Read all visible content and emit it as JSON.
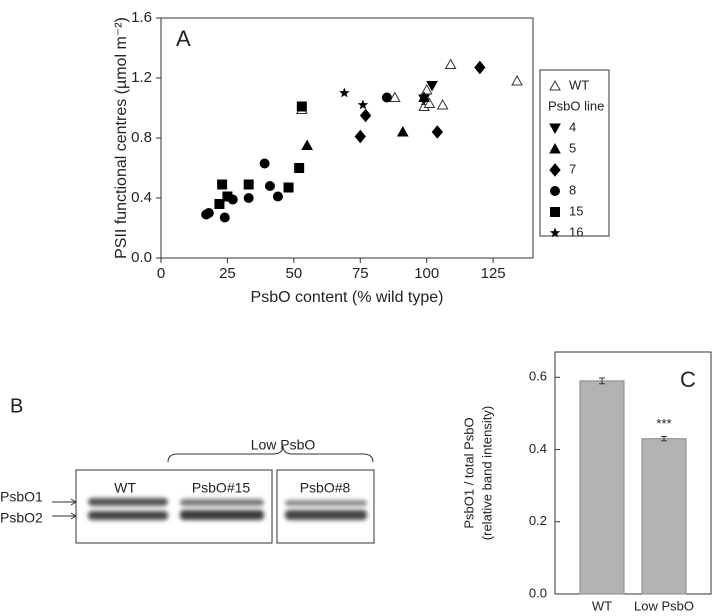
{
  "chart_data": [
    {
      "type": "scatter",
      "panel_label": "A",
      "x_label": "PsbO content (% wild type)",
      "y_label": "PSII functional centres (µmol m⁻²)",
      "xlim": [
        0,
        140
      ],
      "xticks": [
        0,
        25,
        50,
        75,
        100,
        125
      ],
      "ylim": [
        0,
        1.6
      ],
      "yticks": [
        {
          "value": 0,
          "label": "0.0"
        },
        0.4,
        0.8,
        1.2,
        1.6
      ],
      "legend_group_label": "PsbO line",
      "series": [
        {
          "name": "WT",
          "marker": "triangle-open",
          "color": "#333333",
          "x": [
            53,
            88,
            99,
            100,
            100,
            101,
            106,
            109,
            134
          ],
          "y": [
            0.99,
            1.07,
            1.01,
            1.05,
            1.12,
            1.03,
            1.02,
            1.29,
            1.18
          ]
        },
        {
          "name": "4",
          "marker": "triangle-down",
          "color": "#000000",
          "x": [
            99,
            102
          ],
          "y": [
            1.06,
            1.15
          ]
        },
        {
          "name": "5",
          "marker": "triangle-up",
          "color": "#000000",
          "x": [
            55,
            91,
            99
          ],
          "y": [
            0.75,
            0.84,
            1.07
          ]
        },
        {
          "name": "7",
          "marker": "diamond",
          "color": "#000000",
          "x": [
            75,
            77,
            104,
            120
          ],
          "y": [
            0.81,
            0.95,
            0.84,
            1.27
          ]
        },
        {
          "name": "8",
          "marker": "circle",
          "color": "#000000",
          "x": [
            17,
            18,
            24,
            27,
            33,
            39,
            41,
            44,
            85
          ],
          "y": [
            0.29,
            0.3,
            0.27,
            0.39,
            0.4,
            0.63,
            0.48,
            0.41,
            1.07
          ]
        },
        {
          "name": "15",
          "marker": "square",
          "color": "#000000",
          "x": [
            22,
            23,
            25,
            33,
            48,
            52,
            53
          ],
          "y": [
            0.36,
            0.49,
            0.41,
            0.49,
            0.47,
            0.6,
            1.01
          ]
        },
        {
          "name": "16",
          "marker": "star",
          "color": "#000000",
          "x": [
            69,
            76
          ],
          "y": [
            1.1,
            1.02
          ]
        }
      ]
    },
    {
      "type": "bar",
      "panel_label": "C",
      "y_label": [
        "PsbO1 / total PsbO",
        "(relative band intensity)"
      ],
      "categories": [
        "WT",
        "Low PsbO"
      ],
      "values": [
        0.59,
        0.43
      ],
      "errors": [
        0.008,
        0.006
      ],
      "value_annotations": [
        null,
        "***"
      ],
      "color": "#b3b3b3",
      "ylim": [
        0,
        0.67
      ],
      "yticks": [
        {
          "value": 0,
          "label": "0.0"
        },
        0.2,
        0.4,
        0.6
      ]
    }
  ],
  "blot": {
    "panel_label": "B",
    "group_label": "Low PsbO",
    "lanes": [
      "WT",
      "PsbO#15",
      "PsbO#8"
    ],
    "bands": [
      "PsbO1",
      "PsbO2"
    ]
  }
}
